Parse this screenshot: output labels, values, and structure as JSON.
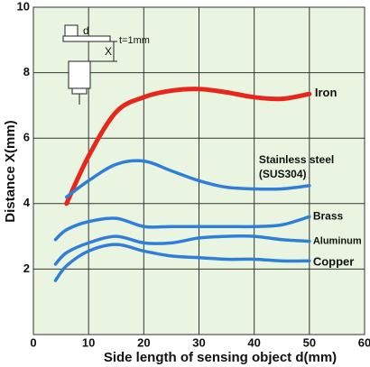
{
  "chart_data": {
    "type": "line",
    "x_label": "Side length of sensing object d(mm)",
    "y_label": "Distance X(mm)",
    "annotations": [
      "d",
      "t=1mm",
      "X"
    ],
    "x": [
      4,
      6,
      10,
      15,
      20,
      25,
      30,
      35,
      40,
      45,
      50
    ],
    "series": [
      {
        "name": "Iron",
        "color": "#e8261c",
        "values": [
          null,
          4.0,
          5.45,
          6.8,
          7.25,
          7.45,
          7.5,
          7.4,
          7.25,
          7.2,
          7.35
        ]
      },
      {
        "name": "Stainless steel\n(SUS304)",
        "color": "#2f7fd8",
        "values": [
          null,
          4.2,
          4.7,
          5.2,
          5.3,
          5.0,
          4.7,
          4.5,
          4.45,
          4.45,
          4.55
        ]
      },
      {
        "name": "Brass",
        "color": "#2f7fd8",
        "values": [
          2.9,
          3.2,
          3.45,
          3.55,
          3.3,
          3.3,
          3.3,
          3.3,
          3.3,
          3.35,
          3.6
        ]
      },
      {
        "name": "Aluminum",
        "color": "#2f7fd8",
        "values": [
          2.15,
          2.5,
          2.8,
          3.0,
          2.8,
          2.8,
          2.95,
          3.0,
          3.0,
          2.9,
          2.85
        ]
      },
      {
        "name": "Copper",
        "color": "#2f7fd8",
        "values": [
          1.65,
          2.1,
          2.55,
          2.75,
          2.55,
          2.4,
          2.35,
          2.3,
          2.3,
          2.25,
          2.25
        ]
      }
    ],
    "xlim": [
      0,
      60
    ],
    "xticks": [
      0,
      10,
      20,
      30,
      40,
      50,
      60
    ],
    "ylim": [
      0,
      10
    ],
    "yticks": [
      2,
      4,
      6,
      8,
      10
    ],
    "grid": true,
    "background": "#e9f5e1"
  }
}
